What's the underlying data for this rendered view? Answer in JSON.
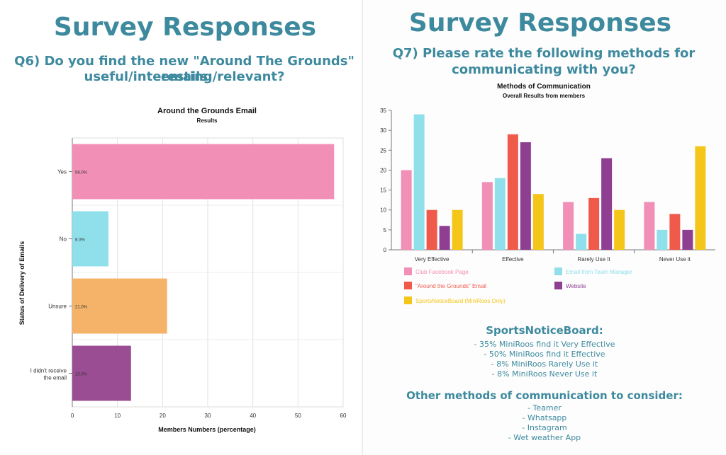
{
  "left": {
    "title": "Survey Responses",
    "question_line1": "Q6) Do you find the new \"Around The Grounds\" emails",
    "question_line2": "useful/interesting/relevant?"
  },
  "right": {
    "title": "Survey Responses",
    "question_line1": "Q7) Please rate the following methods for",
    "question_line2": "communicating with you?"
  },
  "chart_data": [
    {
      "type": "bar",
      "orientation": "horizontal",
      "title": "Around the Grounds Email",
      "subtitle": "Results",
      "xlabel": "Members Numbers (percentage)",
      "ylabel": "Status of Delivery of Emails",
      "categories": [
        "Yes",
        "No",
        "Unsure",
        "I didn't receive the email"
      ],
      "values": [
        58,
        8,
        21,
        13
      ],
      "data_labels": [
        "58.0%",
        "8.0%",
        "21.0%",
        "13.0%"
      ],
      "colors": [
        "#f28fb6",
        "#8fe0eb",
        "#f5b36a",
        "#9a4d92"
      ],
      "xlim": [
        0,
        60
      ],
      "xticks": [
        0,
        10,
        20,
        30,
        40,
        50,
        60
      ],
      "grid": true
    },
    {
      "type": "bar",
      "title": "Methods of Communication",
      "subtitle": "Overall Results from members",
      "categories": [
        "Very Effective",
        "Effective",
        "Rarely Use It",
        "Never Use it"
      ],
      "series": [
        {
          "name": "Club Facebook Page",
          "color": "#f28fb6",
          "values": [
            20,
            17,
            12,
            12
          ]
        },
        {
          "name": "Email from Team Manager",
          "color": "#8fe0eb",
          "values": [
            34,
            18,
            4,
            5
          ]
        },
        {
          "name": "\"Around the Grounds\" Email",
          "color": "#ef5a4a",
          "values": [
            10,
            29,
            13,
            9
          ]
        },
        {
          "name": "Website",
          "color": "#8e3f92",
          "values": [
            6,
            27,
            23,
            5
          ]
        },
        {
          "name": "SportsNoticeBoard (MiniRoos Only)",
          "color": "#f5c61a",
          "values": [
            10,
            14,
            10,
            26
          ]
        }
      ],
      "ylim": [
        0,
        35
      ],
      "yticks": [
        0,
        5,
        10,
        15,
        20,
        25,
        30,
        35
      ],
      "legend": "bottom",
      "grid": false
    }
  ],
  "notes": {
    "snb_heading": "SportsNoticeBoard:",
    "snb_lines": [
      "- 35% MiniRoos find it Very Effective",
      "- 50% MiniRoos find it Effective",
      "- 8% MiniRoos Rarely Use it",
      "- 8% MiniRoos Never Use it"
    ],
    "other_heading": "Other methods of communication to consider:",
    "other_lines": [
      "- Teamer",
      "- Whatsapp",
      "- Instagram",
      "- Wet weather App"
    ]
  }
}
